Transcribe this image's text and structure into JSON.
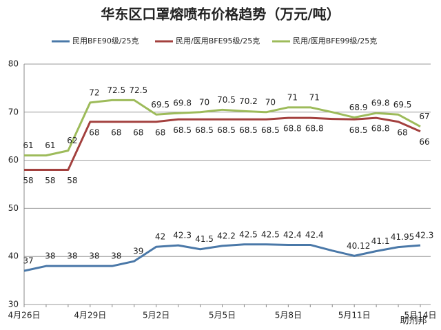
{
  "chart_data": {
    "type": "line",
    "title": "华东区口罩熔喷布价格趋势（万元/吨）",
    "categories": [
      "4月26日",
      null,
      null,
      "4月29日",
      null,
      null,
      "5月2日",
      null,
      null,
      "5月5日",
      null,
      null,
      "5月8日",
      null,
      null,
      "5月11日",
      null,
      null,
      "5月14日"
    ],
    "series": [
      {
        "name": "民用BFE90级/25克",
        "color": "#4a78a8",
        "label_side": "above",
        "values": [
          37,
          38,
          38,
          38,
          38,
          39,
          42,
          42.3,
          41.5,
          42.2,
          42.5,
          42.5,
          42.4,
          42.4,
          41.2,
          40.12,
          41.1,
          41.95,
          42.3
        ],
        "value_labels": [
          "37",
          "38",
          "38",
          "38",
          "38",
          "39",
          "42",
          "42.3",
          "41.5",
          "42.2",
          "42.5",
          "42.5",
          "42.4",
          "42.4",
          null,
          "40.12",
          "41.1",
          "41.95",
          "42.3"
        ]
      },
      {
        "name": "民用/医用BFE95级/25克",
        "color": "#a3403e",
        "label_side": "below",
        "values": [
          58,
          58,
          58,
          68,
          68,
          68,
          68,
          68.5,
          68.5,
          68.5,
          68.5,
          68.5,
          68.8,
          68.8,
          68.6,
          68.5,
          68.8,
          68,
          66
        ],
        "value_labels": [
          "58",
          "58",
          "58",
          "68",
          "68",
          "68",
          "68",
          "68.5",
          "68.5",
          "68.5",
          "68.5",
          "68.5",
          "68.8",
          "68.8",
          null,
          "68.5",
          "68.8",
          "68",
          "66"
        ]
      },
      {
        "name": "民用/医用BFE99级/25克",
        "color": "#9dbb5a",
        "label_side": "above",
        "values": [
          61,
          61,
          62,
          72,
          72.5,
          72.5,
          69.5,
          69.8,
          70,
          70.5,
          70.2,
          70,
          71,
          71,
          70,
          68.9,
          69.8,
          69.5,
          67
        ],
        "value_labels": [
          "61",
          "61",
          "62",
          "72",
          "72.5",
          "72.5",
          "69.5",
          "69.8",
          "70",
          "70.5",
          "70.2",
          "70",
          "71",
          "71",
          null,
          "68.9",
          "69.8",
          "69.5",
          "67"
        ]
      }
    ],
    "ylim": [
      30,
      80
    ],
    "yticks": [
      30,
      40,
      50,
      60,
      70,
      80
    ],
    "grid": true,
    "legend": "top",
    "watermark": "助剂邦"
  }
}
